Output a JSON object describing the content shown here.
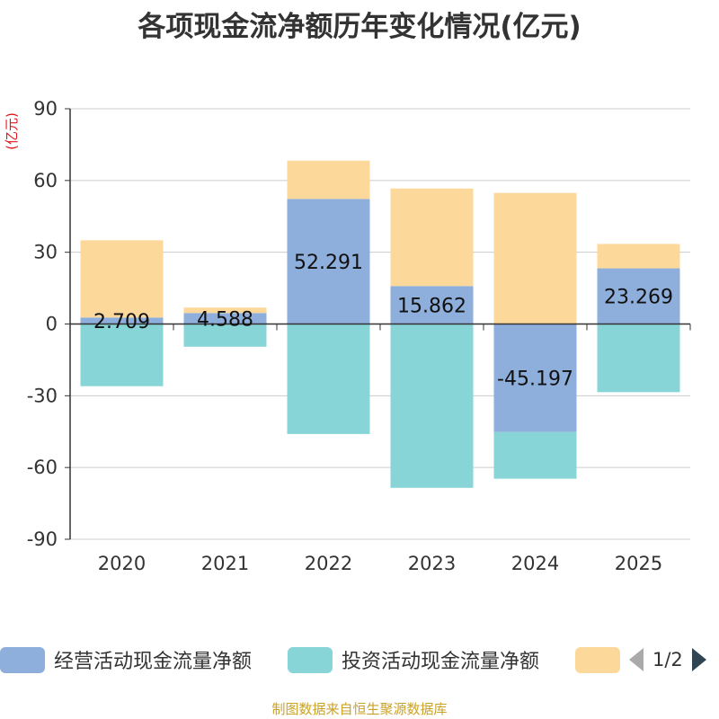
{
  "title": "各项现金流净额历年变化情况(亿元)",
  "source": "制图数据来自恒生聚源数据库",
  "chart_data": {
    "type": "bar",
    "stacked": true,
    "title": "各项现金流净额历年变化情况(亿元)",
    "ylabel": "(亿元)",
    "ylim": [
      -90,
      90
    ],
    "yticks": [
      -90,
      -60,
      -30,
      0,
      30,
      60,
      90
    ],
    "categories": [
      "2020",
      "2021",
      "2022",
      "2023",
      "2024",
      "2025"
    ],
    "series": [
      {
        "name": "经营活动现金流量净额",
        "color": "#8eaedb",
        "values": [
          2.709,
          4.588,
          52.291,
          15.862,
          -45.197,
          23.269
        ],
        "labels": [
          "2.709",
          "4.588",
          "52.291",
          "15.862",
          "-45.197",
          "23.269"
        ]
      },
      {
        "name": "投资活动现金流量净额",
        "color": "#88d5d8",
        "values": [
          -26.0,
          -9.5,
          -46.0,
          -68.5,
          -19.5,
          -28.5
        ]
      },
      {
        "name": "",
        "color": "#fdd89b",
        "values": [
          32.3,
          2.3,
          16.0,
          40.8,
          54.8,
          10.2
        ]
      }
    ],
    "legend": {
      "position": "bottom",
      "page": "1/2"
    },
    "grid": true
  }
}
